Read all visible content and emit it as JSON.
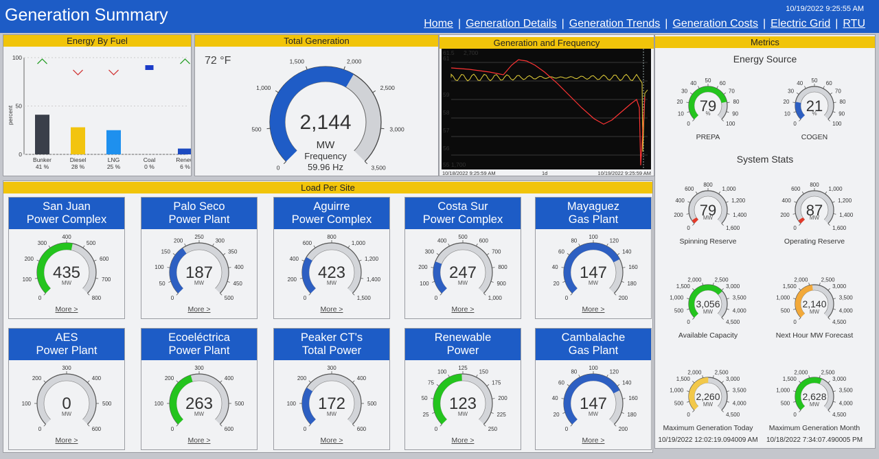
{
  "header": {
    "title": "Generation Summary",
    "timestamp": "10/19/2022 9:25:55 AM",
    "nav": [
      "Home",
      "Generation Details",
      "Generation Trends",
      "Generation Costs",
      "Electric Grid",
      "RTU"
    ]
  },
  "energy_by_fuel": {
    "title": "Energy By Fuel",
    "ylabel": "percent",
    "chart_data": {
      "type": "bar",
      "categories": [
        "Bunker",
        "Diesel",
        "LNG",
        "Coal",
        "Renew"
      ],
      "values": [
        41,
        28,
        25,
        0,
        6
      ],
      "value_labels": [
        "41 %",
        "28 %",
        "25 %",
        "0 %",
        "6 %"
      ],
      "ylim": [
        0,
        100
      ],
      "yticks": [
        0,
        50,
        100
      ],
      "colors": [
        "#3a3f4a",
        "#f2c40f",
        "#1e90ee",
        "#1c3cc8",
        "#1c4ac0"
      ],
      "trends": [
        "up",
        "down",
        "down",
        "flat",
        "up"
      ]
    }
  },
  "total_generation": {
    "title": "Total Generation",
    "temperature": "72 °F",
    "value": "2,144",
    "unit": "MW",
    "frequency_label": "Frequency",
    "frequency": "59.96 Hz",
    "gauge": {
      "min": 0,
      "max": 3500,
      "value": 2144,
      "ticks": [
        "0",
        "500",
        "1,000",
        "1,500",
        "2,000",
        "2,500",
        "3,000",
        "3,500"
      ],
      "zones": [
        {
          "to": 2144,
          "color": "#1f5cc6"
        },
        {
          "to": 3500,
          "color": "#d0d2d6"
        }
      ]
    }
  },
  "generation_frequency": {
    "title": "Generation and Frequency",
    "top_left": "61.5",
    "top_left2": "61",
    "top_mw": "2,700",
    "bottom_left": "55",
    "bottom_mw": "1,700",
    "y_labels": [
      "59",
      "58",
      "57",
      "56"
    ],
    "time_start": "10/18/2022 9:25:59 AM",
    "span": "1d",
    "time_end": "10/19/2022 9:25:59 AM"
  },
  "metrics": {
    "title": "Metrics",
    "energy_source_title": "Energy Source",
    "system_stats_title": "System Stats",
    "gauges": [
      {
        "name": "PREPA",
        "value": "79",
        "unit": "%",
        "ticks": [
          "0",
          "10",
          "20",
          "30",
          "40",
          "50",
          "60",
          "70",
          "80",
          "90",
          "100"
        ]
      },
      {
        "name": "COGEN",
        "value": "21",
        "unit": "%",
        "ticks": [
          "0",
          "10",
          "20",
          "30",
          "40",
          "50",
          "60",
          "70",
          "80",
          "90",
          "100"
        ]
      },
      {
        "name": "Spinning Reserve",
        "value": "79",
        "unit": "MW",
        "ticks": [
          "0",
          "200",
          "400",
          "600",
          "800",
          "1,000",
          "1,200",
          "1,400",
          "1,600"
        ]
      },
      {
        "name": "Operating Reserve",
        "value": "87",
        "unit": "MW",
        "ticks": [
          "0",
          "200",
          "400",
          "600",
          "800",
          "1,000",
          "1,200",
          "1,400",
          "1,600"
        ]
      },
      {
        "name": "Available Capacity",
        "value": "3,056",
        "unit": "MW",
        "ticks": [
          "0",
          "500",
          "1,000",
          "1,500",
          "2,000",
          "2,500",
          "3,000",
          "3,500",
          "4,000",
          "4,500"
        ]
      },
      {
        "name": "Next Hour MW Forecast",
        "value": "2,140",
        "unit": "MW",
        "ticks": [
          "0",
          "500",
          "1,000",
          "1,500",
          "2,000",
          "2,500",
          "3,000",
          "3,500",
          "4,000",
          "4,500"
        ]
      },
      {
        "name": "Maximum Generation Today",
        "value": "2,260",
        "unit": "MW",
        "ticks": [
          "0",
          "500",
          "1,000",
          "1,500",
          "2,000",
          "2,500",
          "3,000",
          "3,500",
          "4,000",
          "4,500"
        ],
        "timestamp": "10/19/2022 12:02:19.094009 AM"
      },
      {
        "name": "Maximum Generation Month",
        "value": "2,628",
        "unit": "MW",
        "ticks": [
          "0",
          "500",
          "1,000",
          "1,500",
          "2,000",
          "2,500",
          "3,000",
          "3,500",
          "4,000",
          "4,500"
        ],
        "timestamp": "10/18/2022 7:34:07.490005 PM"
      }
    ]
  },
  "load_per_site": {
    "title": "Load Per Site",
    "more_label": "More >",
    "sites": [
      {
        "name1": "San Juan",
        "name2": "Power Complex",
        "value": "435",
        "unit": "MW",
        "ticks": [
          "0",
          "100",
          "200",
          "300",
          "400",
          "500",
          "600",
          "700",
          "800"
        ]
      },
      {
        "name1": "Palo Seco",
        "name2": "Power Plant",
        "value": "187",
        "unit": "MW",
        "ticks": [
          "0",
          "50",
          "100",
          "150",
          "200",
          "250",
          "300",
          "350",
          "400",
          "450",
          "500"
        ]
      },
      {
        "name1": "Aguirre",
        "name2": "Power Complex",
        "value": "423",
        "unit": "MW",
        "ticks": [
          "0",
          "200",
          "400",
          "600",
          "800",
          "1,000",
          "1,200",
          "1,400",
          "1,500"
        ]
      },
      {
        "name1": "Costa Sur",
        "name2": "Power Complex",
        "value": "247",
        "unit": "MW",
        "ticks": [
          "0",
          "100",
          "200",
          "300",
          "400",
          "500",
          "600",
          "700",
          "800",
          "900",
          "1,000"
        ]
      },
      {
        "name1": "Mayaguez",
        "name2": "Gas Plant",
        "value": "147",
        "unit": "MW",
        "ticks": [
          "0",
          "20",
          "40",
          "60",
          "80",
          "100",
          "120",
          "140",
          "160",
          "180",
          "200"
        ]
      },
      {
        "name1": "AES",
        "name2": "Power Plant",
        "value": "0",
        "unit": "MW",
        "ticks": [
          "0",
          "100",
          "200",
          "300",
          "400",
          "500",
          "600"
        ]
      },
      {
        "name1": "Ecoeléctrica",
        "name2": "Power Plant",
        "value": "263",
        "unit": "MW",
        "ticks": [
          "0",
          "100",
          "200",
          "300",
          "400",
          "500",
          "600"
        ]
      },
      {
        "name1": "Peaker CT's",
        "name2": "Total Power",
        "value": "172",
        "unit": "MW",
        "ticks": [
          "0",
          "100",
          "200",
          "300",
          "400",
          "500",
          "600"
        ]
      },
      {
        "name1": "Renewable",
        "name2": "Power",
        "value": "123",
        "unit": "MW",
        "ticks": [
          "0",
          "25",
          "50",
          "75",
          "100",
          "125",
          "150",
          "175",
          "200",
          "225",
          "250"
        ]
      },
      {
        "name1": "Cambalache",
        "name2": "Gas Plant",
        "value": "147",
        "unit": "MW",
        "ticks": [
          "0",
          "20",
          "40",
          "60",
          "80",
          "100",
          "120",
          "140",
          "160",
          "180",
          "200"
        ]
      }
    ]
  }
}
